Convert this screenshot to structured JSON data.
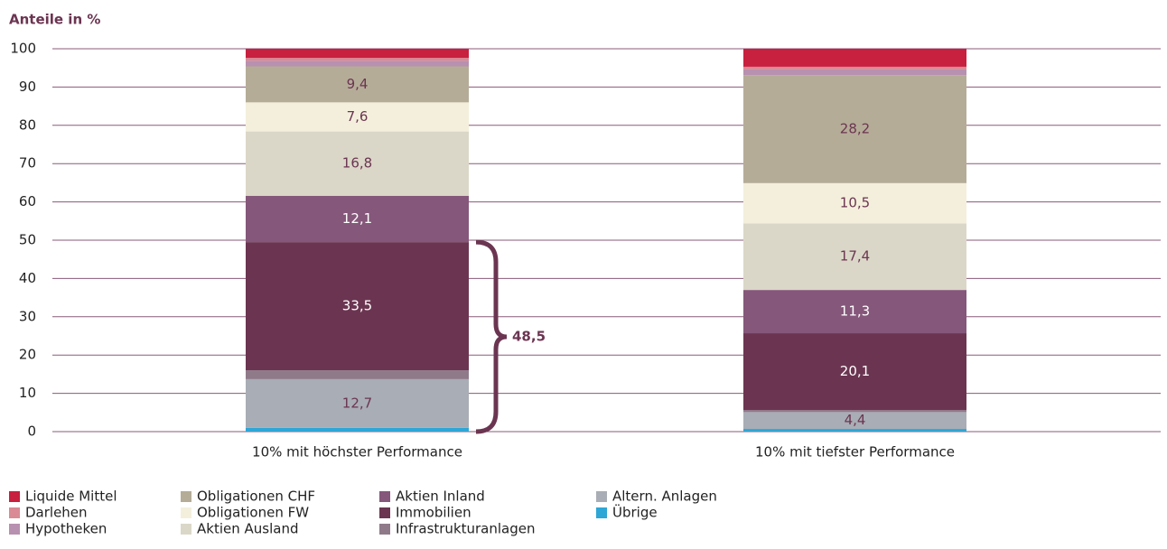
{
  "chart_data": {
    "type": "stacked_bar",
    "title": "Anteile in %",
    "categories": [
      "10% mit höchster Performance",
      "10% mit tiefster Performance"
    ],
    "series": [
      {
        "name": "Liquide Mittel",
        "color": "#c8203f",
        "values": [
          2.4,
          4.7
        ],
        "value_labels": [
          null,
          null
        ]
      },
      {
        "name": "Darlehen",
        "color": "#d98a94",
        "values": [
          0.7,
          0.7
        ],
        "value_labels": [
          null,
          null
        ]
      },
      {
        "name": "Hypotheken",
        "color": "#b890b0",
        "values": [
          1.5,
          1.5
        ],
        "value_labels": [
          null,
          null
        ]
      },
      {
        "name": "Obligationen CHF",
        "color": "#b5ac98",
        "values": [
          9.4,
          28.2
        ],
        "value_labels": [
          "9,4",
          "28,2"
        ]
      },
      {
        "name": "Obligationen FW",
        "color": "#f4efdc",
        "values": [
          7.6,
          10.5
        ],
        "value_labels": [
          "7,6",
          "10,5"
        ]
      },
      {
        "name": "Aktien Ausland",
        "color": "#dbd7c8",
        "values": [
          16.8,
          17.4
        ],
        "value_labels": [
          "16,8",
          "17,4"
        ]
      },
      {
        "name": "Aktien Inland",
        "color": "#85577a",
        "values": [
          12.1,
          11.3
        ],
        "value_labels": [
          "12,1",
          "11,3"
        ]
      },
      {
        "name": "Immobilien",
        "color": "#6b3551",
        "values": [
          33.5,
          20.1
        ],
        "value_labels": [
          "33,5",
          "20,1"
        ]
      },
      {
        "name": "Infrastrukturanlagen",
        "color": "#8f7a8a",
        "values": [
          2.3,
          0.5
        ],
        "value_labels": [
          null,
          null
        ]
      },
      {
        "name": "Altern. Anlagen",
        "color": "#a9adb5",
        "values": [
          12.7,
          4.4
        ],
        "value_labels": [
          "12,7",
          "4,4"
        ]
      },
      {
        "name": "Übrige",
        "color": "#2ea6d6",
        "values": [
          1.0,
          0.7
        ],
        "value_labels": [
          null,
          null
        ]
      }
    ],
    "annotation": "48,5",
    "ylim": [
      0,
      100
    ],
    "yticks": [
      0,
      10,
      20,
      30,
      40,
      50,
      60,
      70,
      80,
      90,
      100
    ],
    "grid": true
  }
}
